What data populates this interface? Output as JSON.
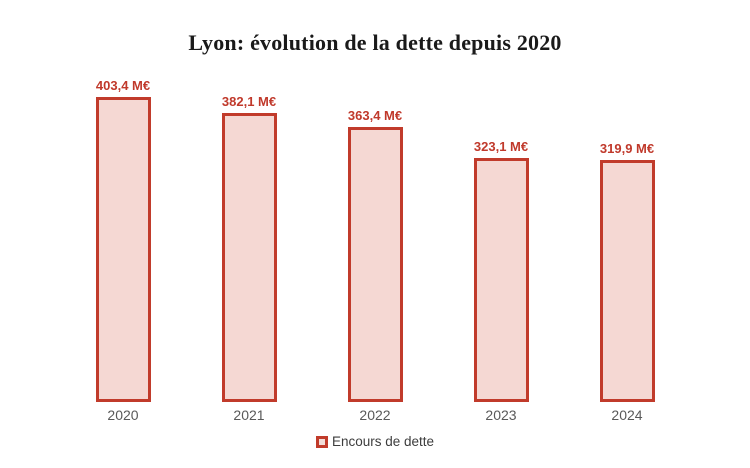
{
  "title": "Lyon: évolution de la dette depuis 2020",
  "chart_data": {
    "type": "bar",
    "title": "Lyon: évolution de la dette depuis 2020",
    "categories": [
      "2020",
      "2021",
      "2022",
      "2023",
      "2024"
    ],
    "series": [
      {
        "name": "Encours de dette",
        "values": [
          403.4,
          382.1,
          363.4,
          323.1,
          319.9
        ]
      }
    ],
    "value_labels": [
      "403,4 M€",
      "382,1 M€",
      "363,4 M€",
      "323,1 M€",
      "319,9 M€"
    ],
    "unit": "M€",
    "ylim": [
      0,
      403.4
    ],
    "grid": false,
    "legend_position": "bottom",
    "colors": {
      "bar_fill": "#f5d8d3",
      "bar_border": "#c13b2b",
      "value_label": "#c0392b",
      "category_label": "#595959",
      "legend_text": "#3d3d3d",
      "title": "#1a1a1a",
      "background": "#ffffff"
    }
  },
  "legend": {
    "label": "Encours de dette"
  }
}
